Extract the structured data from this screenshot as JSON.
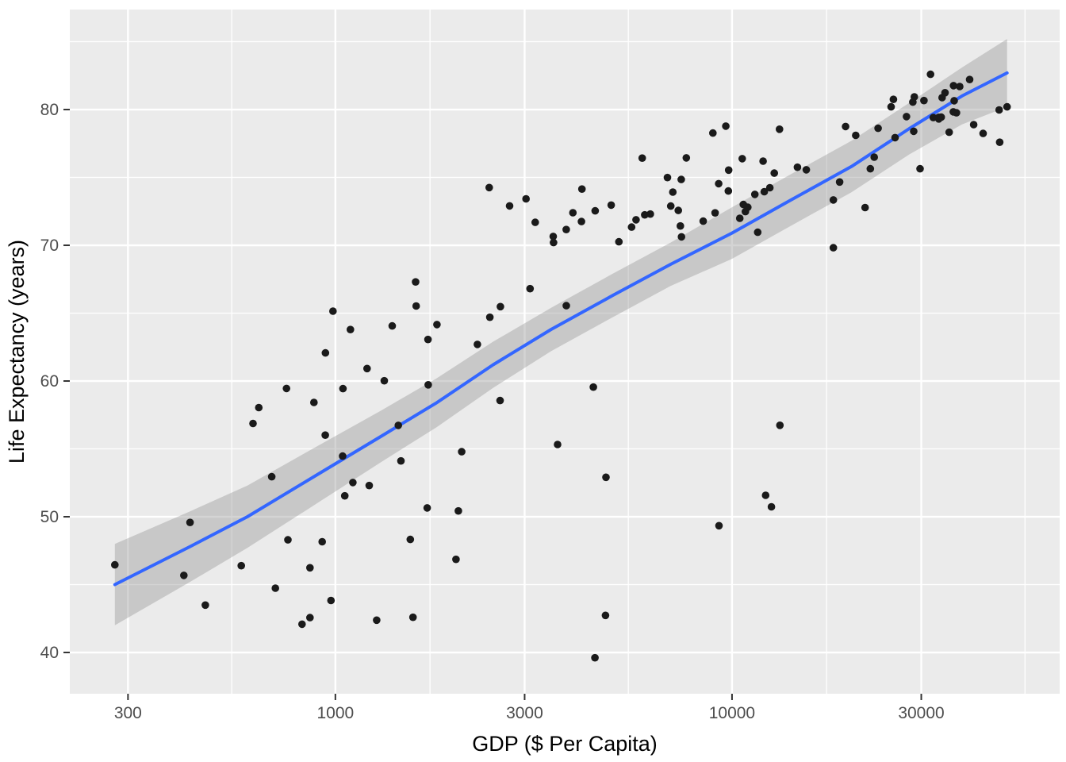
{
  "chart_data": {
    "type": "scatter",
    "title": "",
    "xlabel": "GDP ($ Per Capita)",
    "ylabel": "Life Expectancy (years)",
    "x_scale": "log10",
    "grid": true,
    "legend": "none",
    "x_ticks": [
      300,
      1000,
      3000,
      10000,
      30000
    ],
    "y_ticks": [
      40,
      50,
      60,
      70,
      80
    ],
    "x_minor_gridlines": [
      548,
      1732,
      5477,
      17321,
      54772
    ],
    "y_minor_gridlines": [
      45,
      55,
      65,
      75,
      85
    ],
    "x_domain": [
      214,
      66990
    ],
    "y_domain": [
      36.96,
      87.37
    ],
    "colors": {
      "panel_background": "#EBEBEB",
      "gridline": "#FFFFFF",
      "point": "#1A1A1A",
      "trend_line": "#3366FF",
      "ribbon": "#999999",
      "tick_text": "#4D4D4D",
      "tick_mark": "#333333",
      "axis_title": "#000000"
    },
    "points_format": "[gdp_per_capita, life_expectancy_years]",
    "points": [
      [
        975,
        43.83
      ],
      [
        5937,
        76.42
      ],
      [
        6223,
        72.3
      ],
      [
        4797,
        42.73
      ],
      [
        12779,
        75.32
      ],
      [
        34435,
        81.24
      ],
      [
        36126,
        79.83
      ],
      [
        29796,
        75.64
      ],
      [
        1391,
        64.06
      ],
      [
        33693,
        79.44
      ],
      [
        1441,
        56.73
      ],
      [
        3822,
        65.55
      ],
      [
        7446,
        74.85
      ],
      [
        12570,
        50.73
      ],
      [
        9066,
        72.39
      ],
      [
        10681,
        73.01
      ],
      [
        1217,
        52.3
      ],
      [
        430,
        49.58
      ],
      [
        1714,
        59.72
      ],
      [
        2042,
        50.43
      ],
      [
        36319,
        80.65
      ],
      [
        706,
        44.74
      ],
      [
        1704,
        50.65
      ],
      [
        13172,
        78.55
      ],
      [
        4959,
        72.96
      ],
      [
        7007,
        72.89
      ],
      [
        986,
        65.15
      ],
      [
        278,
        46.46
      ],
      [
        3633,
        55.32
      ],
      [
        9645,
        78.78
      ],
      [
        1545,
        48.33
      ],
      [
        14619,
        75.75
      ],
      [
        8948,
        78.27
      ],
      [
        22833,
        76.49
      ],
      [
        35278,
        78.33
      ],
      [
        2082,
        54.79
      ],
      [
        6025,
        72.24
      ],
      [
        6873,
        74.99
      ],
      [
        5581,
        71.34
      ],
      [
        5728,
        71.88
      ],
      [
        12154,
        51.58
      ],
      [
        641,
        58.04
      ],
      [
        691,
        52.95
      ],
      [
        33207,
        79.31
      ],
      [
        30470,
        80.66
      ],
      [
        13206,
        56.74
      ],
      [
        753,
        59.45
      ],
      [
        32170,
        79.41
      ],
      [
        1328,
        60.02
      ],
      [
        27538,
        79.48
      ],
      [
        5186,
        70.26
      ],
      [
        943,
        56.01
      ],
      [
        579,
        46.39
      ],
      [
        1202,
        60.92
      ],
      [
        3548,
        70.2
      ],
      [
        39725,
        82.21
      ],
      [
        18009,
        73.34
      ],
      [
        36181,
        81.76
      ],
      [
        2452,
        64.7
      ],
      [
        3541,
        70.65
      ],
      [
        11606,
        70.96
      ],
      [
        4471,
        59.55
      ],
      [
        40676,
        78.89
      ],
      [
        25523,
        80.75
      ],
      [
        28570,
        80.55
      ],
      [
        7321,
        72.57
      ],
      [
        31656,
        82.6
      ],
      [
        4519,
        72.54
      ],
      [
        1463,
        54.11
      ],
      [
        1593,
        67.3
      ],
      [
        23348,
        78.62
      ],
      [
        47307,
        77.59
      ],
      [
        10461,
        71.99
      ],
      [
        1569,
        42.59
      ],
      [
        415,
        45.68
      ],
      [
        12057,
        73.95
      ],
      [
        1045,
        59.44
      ],
      [
        759,
        48.3
      ],
      [
        12452,
        74.24
      ],
      [
        1043,
        54.47
      ],
      [
        1803,
        64.16
      ],
      [
        10957,
        72.8
      ],
      [
        11978,
        76.2
      ],
      [
        3096,
        66.8
      ],
      [
        9254,
        74.54
      ],
      [
        3820,
        71.16
      ],
      [
        824,
        42.08
      ],
      [
        944,
        62.07
      ],
      [
        4811,
        52.91
      ],
      [
        1091,
        63.79
      ],
      [
        36798,
        79.76
      ],
      [
        25185,
        80.2
      ],
      [
        2749,
        72.9
      ],
      [
        620,
        56.87
      ],
      [
        2014,
        46.86
      ],
      [
        49357,
        80.2
      ],
      [
        22316,
        75.64
      ],
      [
        2606,
        65.48
      ],
      [
        9809,
        75.54
      ],
      [
        4173,
        71.75
      ],
      [
        7409,
        71.42
      ],
      [
        3190,
        71.69
      ],
      [
        15390,
        75.56
      ],
      [
        20510,
        78.1
      ],
      [
        19329,
        78.75
      ],
      [
        7670,
        76.44
      ],
      [
        10808,
        72.48
      ],
      [
        863,
        46.24
      ],
      [
        1598,
        65.53
      ],
      [
        21655,
        72.78
      ],
      [
        1712,
        63.06
      ],
      [
        9787,
        74.0
      ],
      [
        863,
        42.57
      ],
      [
        47143,
        79.97
      ],
      [
        18678,
        74.66
      ],
      [
        25768,
        77.93
      ],
      [
        926,
        48.16
      ],
      [
        9270,
        49.34
      ],
      [
        28821,
        80.94
      ],
      [
        3970,
        72.4
      ],
      [
        2602,
        58.56
      ],
      [
        4513,
        39.61
      ],
      [
        33860,
        80.88
      ],
      [
        37506,
        81.7
      ],
      [
        4185,
        74.14
      ],
      [
        28718,
        78.4
      ],
      [
        1107,
        52.52
      ],
      [
        7458,
        70.62
      ],
      [
        883,
        58.42
      ],
      [
        18009,
        69.82
      ],
      [
        7093,
        73.92
      ],
      [
        8458,
        71.78
      ],
      [
        1056,
        51.54
      ],
      [
        33203,
        79.43
      ],
      [
        42952,
        78.24
      ],
      [
        10611,
        76.38
      ],
      [
        11416,
        73.75
      ],
      [
        2442,
        74.25
      ],
      [
        3025,
        73.42
      ],
      [
        2281,
        62.7
      ],
      [
        1271,
        42.38
      ],
      [
        470,
        43.49
      ]
    ],
    "trend": {
      "kind": "loess_smooth_with_confidence_band",
      "samples_format": "[gdp, fit, lower, upper]",
      "samples": [
        [
          278,
          45.0,
          42.0,
          48.0
        ],
        [
          430,
          47.8,
          45.2,
          50.4
        ],
        [
          600,
          50.0,
          47.7,
          52.3
        ],
        [
          900,
          53.1,
          51.0,
          55.2
        ],
        [
          1300,
          55.9,
          54.0,
          57.8
        ],
        [
          1800,
          58.4,
          56.6,
          60.2
        ],
        [
          2500,
          61.2,
          59.5,
          62.9
        ],
        [
          3500,
          63.8,
          62.2,
          65.4
        ],
        [
          5000,
          66.3,
          64.7,
          67.9
        ],
        [
          7000,
          68.6,
          67.0,
          70.2
        ],
        [
          10000,
          70.9,
          69.0,
          72.8
        ],
        [
          14000,
          73.3,
          71.4,
          75.2
        ],
        [
          20000,
          75.8,
          73.9,
          77.7
        ],
        [
          28000,
          78.6,
          76.7,
          80.5
        ],
        [
          38000,
          81.0,
          78.9,
          83.1
        ],
        [
          49357,
          82.7,
          80.2,
          85.2
        ]
      ]
    }
  }
}
